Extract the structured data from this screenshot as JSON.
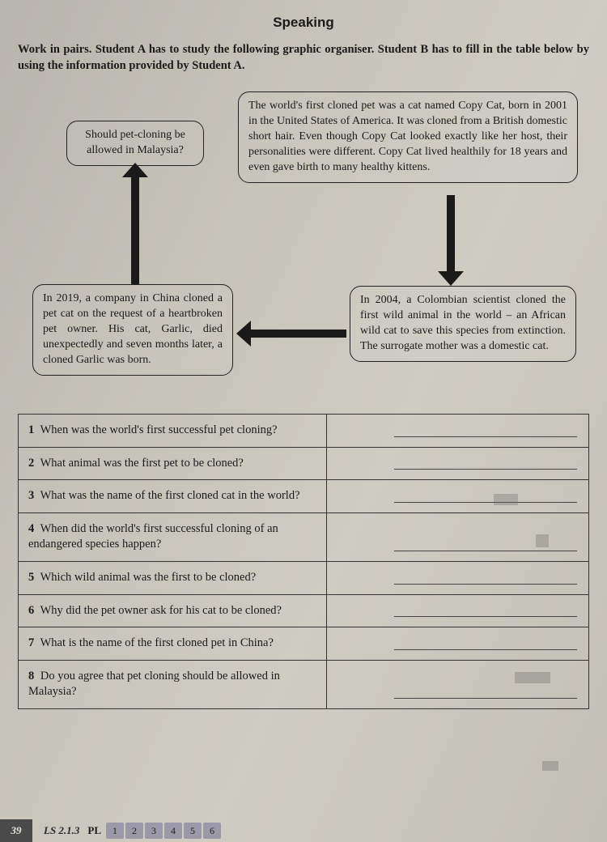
{
  "title": "Speaking",
  "instructions": "Work in pairs. Student A has to study the following graphic organiser. Student B has to fill in the table below by using the information provided by Student A.",
  "organiser": {
    "top_left": "Should pet-cloning be allowed in Malaysia?",
    "top_right": "The world's first cloned pet was a cat named Copy Cat, born in 2001 in the United States of America. It was cloned from a British domestic short hair. Even though Copy Cat looked exactly like her host, their personalities were different. Copy Cat lived healthily for 18 years and even gave birth to many healthy kittens.",
    "bottom_left": "In 2019, a company in China cloned a pet cat on the request of a heartbroken pet owner. His cat, Garlic, died unexpectedly and seven months later, a cloned Garlic was born.",
    "bottom_right": "In 2004, a Colombian scientist cloned the first wild animal in the world – an African wild cat to save this species from extinction. The surrogate mother was a domestic cat."
  },
  "questions": [
    {
      "n": "1",
      "text": "When was the world's first successful pet cloning?"
    },
    {
      "n": "2",
      "text": "What animal was the first pet to be cloned?"
    },
    {
      "n": "3",
      "text": "What was the name of the first cloned cat in the world?"
    },
    {
      "n": "4",
      "text": "When did the world's first successful cloning of an endangered species happen?"
    },
    {
      "n": "5",
      "text": "Which wild animal was the first to be cloned?"
    },
    {
      "n": "6",
      "text": "Why did the pet owner ask for his cat to be cloned?"
    },
    {
      "n": "7",
      "text": "What is the name of the first cloned pet in China?"
    },
    {
      "n": "8",
      "text": "Do you agree that pet cloning should be allowed in Malaysia?"
    }
  ],
  "footer": {
    "page": "39",
    "ls": "LS 2.1.3",
    "pl_label": "PL",
    "pills": [
      "1",
      "2",
      "3",
      "4",
      "5",
      "6"
    ]
  },
  "colors": {
    "text": "#1a1a1a",
    "border": "#333333",
    "arrow": "#1a1a1a",
    "pill_bg": "#9b98a8"
  }
}
